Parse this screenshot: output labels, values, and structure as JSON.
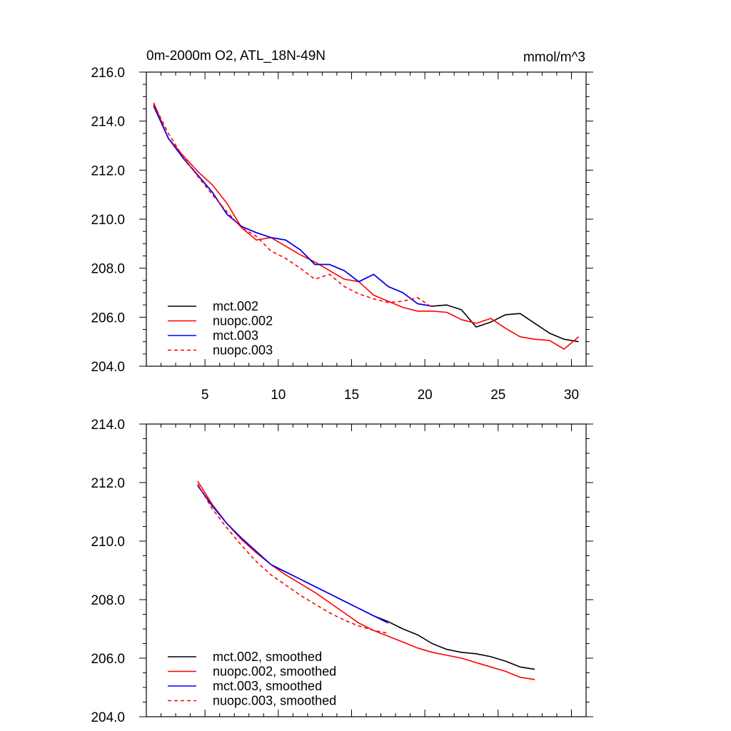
{
  "figure": {
    "title": "0m-2000m O2, ATL_18N-49N",
    "units": "mmol/m^3"
  },
  "chart_data": [
    {
      "type": "line",
      "title": "0m-2000m O2, ATL_18N-49N",
      "units_label": "mmol/m^3",
      "xlabel": "",
      "ylabel": "",
      "xlim": [
        1,
        31
      ],
      "ylim": [
        204,
        216
      ],
      "x_ticks": [
        5,
        10,
        15,
        20,
        25,
        30
      ],
      "x_tick_labels": [
        "5",
        "10",
        "15",
        "20",
        "25",
        "30"
      ],
      "y_ticks": [
        204,
        206,
        208,
        210,
        212,
        214,
        216
      ],
      "y_tick_labels": [
        "204.0",
        "206.0",
        "208.0",
        "210.0",
        "212.0",
        "214.0",
        "216.0"
      ],
      "grid": false,
      "legend_position": "bottom-left",
      "series": [
        {
          "name": "mct.002",
          "color": "#000000",
          "dash": "solid",
          "x": [
            1.5,
            2.5,
            3.5,
            4.5,
            5.5,
            6.5,
            7.5,
            8.5,
            9.5,
            10.5,
            11.5,
            12.5,
            13.5,
            14.5,
            15.5,
            16.5,
            17.5,
            18.5,
            19.5,
            20.5,
            21.5,
            22.5,
            23.5,
            24.5,
            25.5,
            26.5,
            27.5,
            28.5,
            29.5,
            30.5
          ],
          "values": [
            214.65,
            213.3,
            212.5,
            211.8,
            211.1,
            210.2,
            209.7,
            209.45,
            209.25,
            209.15,
            208.75,
            208.15,
            208.15,
            207.9,
            207.45,
            207.75,
            207.25,
            207.0,
            206.55,
            206.45,
            206.5,
            206.3,
            205.6,
            205.8,
            206.1,
            206.15,
            205.75,
            205.35,
            205.1,
            205.0
          ]
        },
        {
          "name": "nuopc.002",
          "color": "#ff0000",
          "dash": "solid",
          "x": [
            1.5,
            2.5,
            3.5,
            4.5,
            5.5,
            6.5,
            7.5,
            8.5,
            9.5,
            10.5,
            11.5,
            12.5,
            13.5,
            14.5,
            15.5,
            16.5,
            17.5,
            18.5,
            19.5,
            20.5,
            21.5,
            22.5,
            23.5,
            24.5,
            25.5,
            26.5,
            27.5,
            28.5,
            29.5,
            30.5
          ],
          "values": [
            214.75,
            213.3,
            212.6,
            211.95,
            211.4,
            210.65,
            209.65,
            209.15,
            209.25,
            208.9,
            208.55,
            208.25,
            207.9,
            207.55,
            207.45,
            206.9,
            206.65,
            206.4,
            206.25,
            206.25,
            206.2,
            205.9,
            205.75,
            205.95,
            205.55,
            205.2,
            205.1,
            205.05,
            204.7,
            205.2
          ]
        },
        {
          "name": "mct.003",
          "color": "#0000ff",
          "dash": "solid",
          "x": [
            1.5,
            2.5,
            3.5,
            4.5,
            5.5,
            6.5,
            7.5,
            8.5,
            9.5,
            10.5,
            11.5,
            12.5,
            13.5,
            14.5,
            15.5,
            16.5,
            17.5,
            18.5,
            19.5,
            20.5
          ],
          "values": [
            214.6,
            213.3,
            212.5,
            211.8,
            211.1,
            210.2,
            209.7,
            209.45,
            209.25,
            209.15,
            208.75,
            208.15,
            208.15,
            207.9,
            207.45,
            207.75,
            207.25,
            207.0,
            206.55,
            206.45
          ]
        },
        {
          "name": "nuopc.003",
          "color": "#ff0000",
          "dash": "dashed",
          "x": [
            1.5,
            2.5,
            3.5,
            4.5,
            5.5,
            6.5,
            7.5,
            8.5,
            9.5,
            10.5,
            11.5,
            12.5,
            13.5,
            14.5,
            15.5,
            16.5,
            17.5,
            18.5,
            19.5,
            20.5
          ],
          "values": [
            214.7,
            213.5,
            212.55,
            211.75,
            211.0,
            210.3,
            209.65,
            209.3,
            208.7,
            208.4,
            208.0,
            207.55,
            207.75,
            207.25,
            206.95,
            206.75,
            206.6,
            206.65,
            206.8,
            206.4
          ]
        }
      ]
    },
    {
      "type": "line",
      "title": "",
      "xlabel": "",
      "ylabel": "",
      "xlim": [
        1,
        31
      ],
      "ylim": [
        204,
        214
      ],
      "x_ticks": [
        5,
        10,
        15,
        20,
        25,
        30
      ],
      "x_tick_labels": [],
      "y_ticks": [
        204,
        206,
        208,
        210,
        212,
        214
      ],
      "y_tick_labels": [
        "204.0",
        "206.0",
        "208.0",
        "210.0",
        "212.0",
        "214.0"
      ],
      "grid": false,
      "legend_position": "bottom-left",
      "series": [
        {
          "name": "mct.002, smoothed",
          "color": "#000000",
          "dash": "solid",
          "x": [
            4.5,
            5.5,
            6.5,
            7.5,
            8.5,
            9.5,
            10.5,
            11.5,
            12.5,
            13.5,
            14.5,
            15.5,
            16.5,
            17.5,
            18.5,
            19.5,
            20.5,
            21.5,
            22.5,
            23.5,
            24.5,
            25.5,
            26.5,
            27.5
          ],
          "values": [
            211.9,
            211.2,
            210.6,
            210.1,
            209.65,
            209.2,
            208.95,
            208.7,
            208.45,
            208.2,
            207.95,
            207.7,
            207.45,
            207.25,
            207.0,
            206.8,
            206.5,
            206.3,
            206.2,
            206.15,
            206.05,
            205.9,
            205.7,
            205.62
          ]
        },
        {
          "name": "nuopc.002, smoothed",
          "color": "#ff0000",
          "dash": "solid",
          "x": [
            4.5,
            5.5,
            6.5,
            7.5,
            8.5,
            9.5,
            10.5,
            11.5,
            12.5,
            13.5,
            14.5,
            15.5,
            16.5,
            17.5,
            18.5,
            19.5,
            20.5,
            21.5,
            22.5,
            23.5,
            24.5,
            25.5,
            26.5,
            27.5
          ],
          "values": [
            212.05,
            211.25,
            210.6,
            210.05,
            209.6,
            209.2,
            208.85,
            208.55,
            208.25,
            207.9,
            207.55,
            207.2,
            206.95,
            206.75,
            206.55,
            206.35,
            206.2,
            206.1,
            206.0,
            205.85,
            205.7,
            205.55,
            205.35,
            205.27
          ]
        },
        {
          "name": "mct.003, smoothed",
          "color": "#0000ff",
          "dash": "solid",
          "x": [
            4.5,
            5.5,
            6.5,
            7.5,
            8.5,
            9.5,
            10.5,
            11.5,
            12.5,
            13.5,
            14.5,
            15.5,
            16.5,
            17.5
          ],
          "values": [
            211.9,
            211.2,
            210.6,
            210.1,
            209.65,
            209.2,
            208.95,
            208.7,
            208.45,
            208.2,
            207.95,
            207.7,
            207.45,
            207.2
          ]
        },
        {
          "name": "nuopc.003, smoothed",
          "color": "#ff0000",
          "dash": "dashed",
          "x": [
            4.5,
            5.5,
            6.5,
            7.5,
            8.5,
            9.5,
            10.5,
            11.5,
            12.5,
            13.5,
            14.5,
            15.5,
            16.5,
            17.5
          ],
          "values": [
            211.95,
            211.1,
            210.45,
            209.85,
            209.3,
            208.85,
            208.5,
            208.15,
            207.85,
            207.55,
            207.3,
            207.1,
            206.95,
            206.85
          ]
        }
      ]
    }
  ]
}
